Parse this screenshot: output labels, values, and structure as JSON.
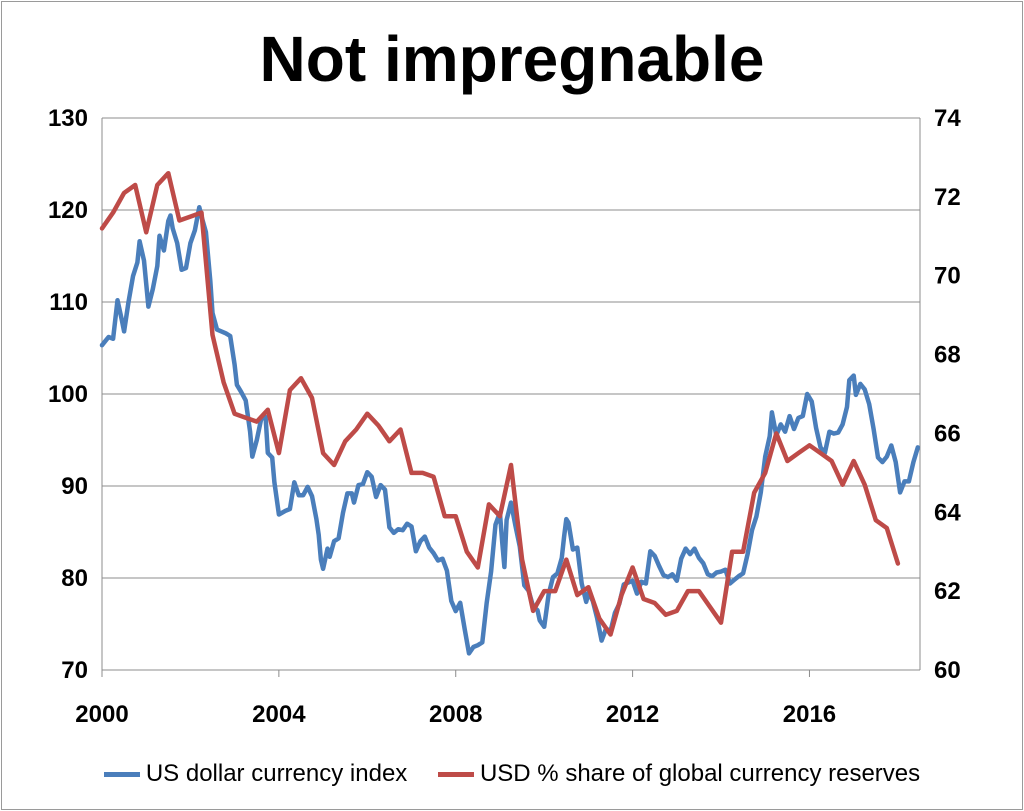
{
  "chart_data": {
    "type": "line",
    "title": "Not impregnable",
    "x_ticks": [
      "2000",
      "2004",
      "2008",
      "2012",
      "2016"
    ],
    "x_range": [
      2000,
      2018.5
    ],
    "y_left": {
      "range": [
        70,
        130
      ],
      "ticks": [
        "70",
        "80",
        "90",
        "100",
        "110",
        "120",
        "130"
      ]
    },
    "y_right": {
      "range": [
        60,
        74
      ],
      "ticks": [
        "60",
        "62",
        "64",
        "66",
        "68",
        "70",
        "72",
        "74"
      ]
    },
    "grid": true,
    "legend_position": "bottom",
    "series": [
      {
        "name": "US dollar currency index",
        "color": "#4a7ebb",
        "axis": "left",
        "points": [
          [
            2000.0,
            105.3
          ],
          [
            2000.15,
            106.2
          ],
          [
            2000.25,
            106.0
          ],
          [
            2000.35,
            110.2
          ],
          [
            2000.45,
            108.0
          ],
          [
            2000.5,
            106.8
          ],
          [
            2000.6,
            110.0
          ],
          [
            2000.7,
            112.8
          ],
          [
            2000.8,
            114.3
          ],
          [
            2000.85,
            116.6
          ],
          [
            2000.95,
            114.5
          ],
          [
            2001.0,
            112.0
          ],
          [
            2001.05,
            109.5
          ],
          [
            2001.15,
            111.4
          ],
          [
            2001.25,
            113.9
          ],
          [
            2001.3,
            117.2
          ],
          [
            2001.4,
            115.6
          ],
          [
            2001.5,
            118.8
          ],
          [
            2001.55,
            119.4
          ],
          [
            2001.6,
            118.0
          ],
          [
            2001.7,
            116.4
          ],
          [
            2001.8,
            113.5
          ],
          [
            2001.9,
            113.7
          ],
          [
            2002.0,
            116.4
          ],
          [
            2002.1,
            117.8
          ],
          [
            2002.2,
            120.3
          ],
          [
            2002.25,
            119.3
          ],
          [
            2002.35,
            117.6
          ],
          [
            2002.45,
            112.3
          ],
          [
            2002.5,
            108.8
          ],
          [
            2002.6,
            107.0
          ],
          [
            2002.7,
            106.8
          ],
          [
            2002.8,
            106.6
          ],
          [
            2002.9,
            106.3
          ],
          [
            2003.0,
            103.2
          ],
          [
            2003.05,
            101.0
          ],
          [
            2003.15,
            100.2
          ],
          [
            2003.25,
            99.3
          ],
          [
            2003.35,
            95.9
          ],
          [
            2003.4,
            93.2
          ],
          [
            2003.5,
            95.0
          ],
          [
            2003.6,
            97.3
          ],
          [
            2003.7,
            97.5
          ],
          [
            2003.75,
            93.6
          ],
          [
            2003.85,
            93.1
          ],
          [
            2003.9,
            90.4
          ],
          [
            2004.0,
            86.9
          ],
          [
            2004.15,
            87.3
          ],
          [
            2004.25,
            87.5
          ],
          [
            2004.35,
            90.4
          ],
          [
            2004.45,
            89.0
          ],
          [
            2004.55,
            89.0
          ],
          [
            2004.65,
            89.9
          ],
          [
            2004.75,
            88.9
          ],
          [
            2004.85,
            86.4
          ],
          [
            2004.9,
            84.7
          ],
          [
            2004.95,
            82.0
          ],
          [
            2005.0,
            81.0
          ],
          [
            2005.1,
            83.2
          ],
          [
            2005.15,
            82.3
          ],
          [
            2005.25,
            84.0
          ],
          [
            2005.35,
            84.3
          ],
          [
            2005.45,
            87.1
          ],
          [
            2005.55,
            89.2
          ],
          [
            2005.65,
            89.2
          ],
          [
            2005.7,
            88.2
          ],
          [
            2005.8,
            90.1
          ],
          [
            2005.9,
            90.2
          ],
          [
            2006.0,
            91.5
          ],
          [
            2006.1,
            91.0
          ],
          [
            2006.2,
            88.8
          ],
          [
            2006.3,
            90.1
          ],
          [
            2006.4,
            89.6
          ],
          [
            2006.5,
            85.5
          ],
          [
            2006.6,
            84.9
          ],
          [
            2006.7,
            85.3
          ],
          [
            2006.8,
            85.2
          ],
          [
            2006.9,
            85.9
          ],
          [
            2007.0,
            85.6
          ],
          [
            2007.1,
            82.9
          ],
          [
            2007.2,
            84.0
          ],
          [
            2007.3,
            84.5
          ],
          [
            2007.4,
            83.3
          ],
          [
            2007.5,
            82.7
          ],
          [
            2007.6,
            81.9
          ],
          [
            2007.7,
            82.1
          ],
          [
            2007.8,
            80.8
          ],
          [
            2007.9,
            77.5
          ],
          [
            2008.0,
            76.4
          ],
          [
            2008.1,
            77.3
          ],
          [
            2008.2,
            74.5
          ],
          [
            2008.3,
            71.8
          ],
          [
            2008.4,
            72.5
          ],
          [
            2008.5,
            72.7
          ],
          [
            2008.6,
            73.0
          ],
          [
            2008.7,
            77.3
          ],
          [
            2008.8,
            80.7
          ],
          [
            2008.9,
            85.8
          ],
          [
            2009.0,
            87.1
          ],
          [
            2009.05,
            83.9
          ],
          [
            2009.1,
            81.2
          ],
          [
            2009.15,
            86.3
          ],
          [
            2009.25,
            88.2
          ],
          [
            2009.35,
            85.7
          ],
          [
            2009.45,
            83.4
          ],
          [
            2009.55,
            79.2
          ],
          [
            2009.65,
            78.6
          ],
          [
            2009.75,
            76.9
          ],
          [
            2009.85,
            76.5
          ],
          [
            2009.9,
            75.4
          ],
          [
            2010.0,
            74.7
          ],
          [
            2010.1,
            78.2
          ],
          [
            2010.2,
            80.1
          ],
          [
            2010.3,
            80.5
          ],
          [
            2010.4,
            82.2
          ],
          [
            2010.45,
            84.5
          ],
          [
            2010.5,
            86.4
          ],
          [
            2010.55,
            86.0
          ],
          [
            2010.65,
            83.1
          ],
          [
            2010.75,
            83.3
          ],
          [
            2010.85,
            79.4
          ],
          [
            2010.95,
            77.4
          ],
          [
            2011.0,
            78.4
          ],
          [
            2011.1,
            77.5
          ],
          [
            2011.2,
            75.6
          ],
          [
            2011.3,
            73.2
          ],
          [
            2011.4,
            74.5
          ],
          [
            2011.5,
            74.2
          ],
          [
            2011.6,
            76.2
          ],
          [
            2011.7,
            77.2
          ],
          [
            2011.8,
            79.3
          ],
          [
            2011.9,
            79.5
          ],
          [
            2012.0,
            79.7
          ],
          [
            2012.1,
            78.3
          ],
          [
            2012.2,
            79.6
          ],
          [
            2012.3,
            79.4
          ],
          [
            2012.4,
            82.9
          ],
          [
            2012.5,
            82.4
          ],
          [
            2012.6,
            81.3
          ],
          [
            2012.7,
            80.3
          ],
          [
            2012.8,
            80.1
          ],
          [
            2012.9,
            80.4
          ],
          [
            2013.0,
            79.7
          ],
          [
            2013.1,
            82.1
          ],
          [
            2013.2,
            83.2
          ],
          [
            2013.3,
            82.6
          ],
          [
            2013.4,
            83.2
          ],
          [
            2013.5,
            82.2
          ],
          [
            2013.6,
            81.6
          ],
          [
            2013.7,
            80.4
          ],
          [
            2013.8,
            80.2
          ],
          [
            2013.9,
            80.6
          ],
          [
            2014.0,
            80.7
          ],
          [
            2014.1,
            80.9
          ],
          [
            2014.2,
            79.4
          ],
          [
            2014.3,
            79.8
          ],
          [
            2014.4,
            80.2
          ],
          [
            2014.5,
            80.5
          ],
          [
            2014.6,
            82.6
          ],
          [
            2014.7,
            85.2
          ],
          [
            2014.8,
            86.7
          ],
          [
            2014.9,
            89.3
          ],
          [
            2015.0,
            93.2
          ],
          [
            2015.1,
            95.4
          ],
          [
            2015.15,
            98.0
          ],
          [
            2015.25,
            95.5
          ],
          [
            2015.35,
            96.7
          ],
          [
            2015.45,
            95.9
          ],
          [
            2015.55,
            97.6
          ],
          [
            2015.65,
            96.2
          ],
          [
            2015.75,
            97.4
          ],
          [
            2015.85,
            97.6
          ],
          [
            2015.95,
            100.0
          ],
          [
            2016.05,
            99.2
          ],
          [
            2016.15,
            96.3
          ],
          [
            2016.25,
            94.2
          ],
          [
            2016.35,
            93.6
          ],
          [
            2016.45,
            95.9
          ],
          [
            2016.55,
            95.7
          ],
          [
            2016.65,
            95.8
          ],
          [
            2016.75,
            96.7
          ],
          [
            2016.85,
            98.6
          ],
          [
            2016.9,
            101.5
          ],
          [
            2017.0,
            102.0
          ],
          [
            2017.05,
            99.9
          ],
          [
            2017.15,
            101.1
          ],
          [
            2017.25,
            100.5
          ],
          [
            2017.35,
            98.9
          ],
          [
            2017.45,
            96.2
          ],
          [
            2017.55,
            93.1
          ],
          [
            2017.65,
            92.6
          ],
          [
            2017.75,
            93.2
          ],
          [
            2017.85,
            94.4
          ],
          [
            2017.95,
            92.6
          ],
          [
            2018.05,
            89.3
          ],
          [
            2018.15,
            90.5
          ],
          [
            2018.25,
            90.5
          ],
          [
            2018.35,
            92.6
          ],
          [
            2018.45,
            94.2
          ]
        ]
      },
      {
        "name": "USD % share of global currency reserves",
        "color": "#be4b48",
        "axis": "right",
        "points": [
          [
            2000.0,
            71.2
          ],
          [
            2000.25,
            71.6
          ],
          [
            2000.5,
            72.1
          ],
          [
            2000.75,
            72.3
          ],
          [
            2001.0,
            71.1
          ],
          [
            2001.25,
            72.3
          ],
          [
            2001.5,
            72.6
          ],
          [
            2001.75,
            71.4
          ],
          [
            2002.0,
            71.5
          ],
          [
            2002.25,
            71.6
          ],
          [
            2002.5,
            68.5
          ],
          [
            2002.75,
            67.3
          ],
          [
            2003.0,
            66.5
          ],
          [
            2003.25,
            66.4
          ],
          [
            2003.5,
            66.3
          ],
          [
            2003.75,
            66.6
          ],
          [
            2004.0,
            65.5
          ],
          [
            2004.25,
            67.1
          ],
          [
            2004.5,
            67.4
          ],
          [
            2004.75,
            66.9
          ],
          [
            2005.0,
            65.5
          ],
          [
            2005.25,
            65.2
          ],
          [
            2005.5,
            65.8
          ],
          [
            2005.75,
            66.1
          ],
          [
            2006.0,
            66.5
          ],
          [
            2006.25,
            66.2
          ],
          [
            2006.5,
            65.8
          ],
          [
            2006.75,
            66.1
          ],
          [
            2007.0,
            65.0
          ],
          [
            2007.25,
            65.0
          ],
          [
            2007.5,
            64.9
          ],
          [
            2007.75,
            63.9
          ],
          [
            2008.0,
            63.9
          ],
          [
            2008.25,
            63.0
          ],
          [
            2008.5,
            62.6
          ],
          [
            2008.75,
            64.2
          ],
          [
            2009.0,
            63.9
          ],
          [
            2009.25,
            65.2
          ],
          [
            2009.5,
            62.8
          ],
          [
            2009.75,
            61.5
          ],
          [
            2010.0,
            62.0
          ],
          [
            2010.25,
            62.0
          ],
          [
            2010.5,
            62.8
          ],
          [
            2010.75,
            61.9
          ],
          [
            2011.0,
            62.1
          ],
          [
            2011.25,
            61.3
          ],
          [
            2011.5,
            60.9
          ],
          [
            2011.75,
            61.9
          ],
          [
            2012.0,
            62.6
          ],
          [
            2012.25,
            61.8
          ],
          [
            2012.5,
            61.7
          ],
          [
            2012.75,
            61.4
          ],
          [
            2013.0,
            61.5
          ],
          [
            2013.25,
            62.0
          ],
          [
            2013.5,
            62.0
          ],
          [
            2013.75,
            61.6
          ],
          [
            2014.0,
            61.2
          ],
          [
            2014.25,
            63.0
          ],
          [
            2014.5,
            63.0
          ],
          [
            2014.75,
            64.5
          ],
          [
            2015.0,
            65.0
          ],
          [
            2015.25,
            66.0
          ],
          [
            2015.5,
            65.3
          ],
          [
            2015.75,
            65.5
          ],
          [
            2016.0,
            65.7
          ],
          [
            2016.25,
            65.5
          ],
          [
            2016.5,
            65.3
          ],
          [
            2016.75,
            64.7
          ],
          [
            2017.0,
            65.3
          ],
          [
            2017.25,
            64.7
          ],
          [
            2017.5,
            63.8
          ],
          [
            2017.75,
            63.6
          ],
          [
            2018.0,
            62.7
          ]
        ]
      }
    ]
  }
}
